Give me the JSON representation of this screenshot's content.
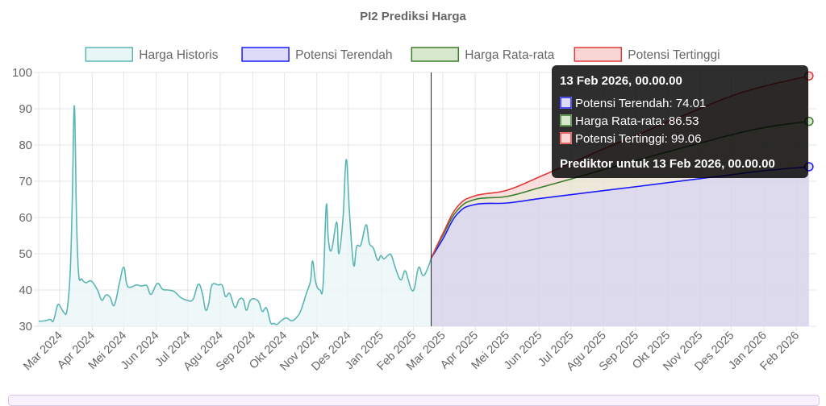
{
  "chart_data": {
    "type": "line",
    "title": "PI2 Prediksi Harga",
    "ylim": [
      30,
      100
    ],
    "y_ticks": [
      30,
      40,
      50,
      60,
      70,
      80,
      90,
      100
    ],
    "x_tick_labels": [
      "Mar 2024",
      "Apr 2024",
      "Mei 2024",
      "Jun 2024",
      "Jul 2024",
      "Agu 2024",
      "Sep 2024",
      "Okt 2024",
      "Nov 2024",
      "Des 2024",
      "Jan 2025",
      "Feb 2025",
      "Mar 2025",
      "Apr 2025",
      "Mei 2025",
      "Jun 2025",
      "Jul 2025",
      "Agu 2025",
      "Sep 2025",
      "Okt 2025",
      "Nov 2025",
      "Des 2025",
      "Jan 2026",
      "Feb 2026"
    ],
    "x_tick_dates": [
      "2024-03-01",
      "2024-04-01",
      "2024-05-01",
      "2024-06-01",
      "2024-07-01",
      "2024-08-01",
      "2024-09-01",
      "2024-10-01",
      "2024-11-01",
      "2024-12-01",
      "2025-01-01",
      "2025-02-01",
      "2025-03-01",
      "2025-04-01",
      "2025-05-01",
      "2025-06-01",
      "2025-07-01",
      "2025-08-01",
      "2025-09-01",
      "2025-10-01",
      "2025-11-01",
      "2025-12-01",
      "2026-01-01",
      "2026-02-01"
    ],
    "x_range": [
      "2024-02-10",
      "2026-02-20"
    ],
    "grid": true,
    "legend_position": "top",
    "vertical_marker_date": "2025-02-18",
    "series": [
      {
        "name": "Harga Historis",
        "color": "#5bb5b5",
        "fill": "#e9f6f6",
        "points": [
          [
            "2024-02-10",
            31.4
          ],
          [
            "2024-02-16",
            31.5
          ],
          [
            "2024-02-21",
            31.9
          ],
          [
            "2024-02-24",
            31.5
          ],
          [
            "2024-02-28",
            35.8
          ],
          [
            "2024-03-02",
            35.2
          ],
          [
            "2024-03-05",
            33.8
          ],
          [
            "2024-03-08",
            34.5
          ],
          [
            "2024-03-11",
            45
          ],
          [
            "2024-03-13",
            65
          ],
          [
            "2024-03-15",
            90.8
          ],
          [
            "2024-03-17",
            60
          ],
          [
            "2024-03-19",
            44.5
          ],
          [
            "2024-03-22",
            43
          ],
          [
            "2024-03-26",
            42
          ],
          [
            "2024-03-31",
            42.5
          ],
          [
            "2024-04-06",
            40
          ],
          [
            "2024-04-10",
            37.2
          ],
          [
            "2024-04-14",
            38.6
          ],
          [
            "2024-04-18",
            38
          ],
          [
            "2024-04-22",
            35.8
          ],
          [
            "2024-04-27",
            42
          ],
          [
            "2024-05-01",
            46.3
          ],
          [
            "2024-05-04",
            41.5
          ],
          [
            "2024-05-08",
            40.8
          ],
          [
            "2024-05-13",
            41.4
          ],
          [
            "2024-05-18",
            41.1
          ],
          [
            "2024-05-23",
            41.2
          ],
          [
            "2024-05-27",
            38.8
          ],
          [
            "2024-06-02",
            41.8
          ],
          [
            "2024-06-07",
            40.2
          ],
          [
            "2024-06-12",
            40
          ],
          [
            "2024-06-18",
            39.6
          ],
          [
            "2024-06-24",
            38
          ],
          [
            "2024-06-30",
            37.2
          ],
          [
            "2024-07-06",
            37.4
          ],
          [
            "2024-07-11",
            41.6
          ],
          [
            "2024-07-15",
            39
          ],
          [
            "2024-07-18",
            34.5
          ],
          [
            "2024-07-21",
            36.3
          ],
          [
            "2024-07-24",
            41.3
          ],
          [
            "2024-07-30",
            41.4
          ],
          [
            "2024-08-03",
            41.2
          ],
          [
            "2024-08-06",
            38.2
          ],
          [
            "2024-08-10",
            39
          ],
          [
            "2024-08-15",
            35.2
          ],
          [
            "2024-08-19",
            37.4
          ],
          [
            "2024-08-23",
            37.3
          ],
          [
            "2024-08-26",
            34.4
          ],
          [
            "2024-08-30",
            37.3
          ],
          [
            "2024-09-06",
            37
          ],
          [
            "2024-09-10",
            34.1
          ],
          [
            "2024-09-14",
            35
          ],
          [
            "2024-09-18",
            31
          ],
          [
            "2024-09-21",
            30.8
          ],
          [
            "2024-09-24",
            30.5
          ],
          [
            "2024-09-28",
            31.5
          ],
          [
            "2024-10-03",
            32.3
          ],
          [
            "2024-10-08",
            31.5
          ],
          [
            "2024-10-13",
            32.5
          ],
          [
            "2024-10-17",
            34.5
          ],
          [
            "2024-10-22",
            39
          ],
          [
            "2024-10-26",
            42.5
          ],
          [
            "2024-10-28",
            48
          ],
          [
            "2024-10-31",
            42
          ],
          [
            "2024-11-04",
            40
          ],
          [
            "2024-11-07",
            41.5
          ],
          [
            "2024-11-10",
            63.3
          ],
          [
            "2024-11-12",
            54
          ],
          [
            "2024-11-15",
            51
          ],
          [
            "2024-11-20",
            58.7
          ],
          [
            "2024-11-22",
            50
          ],
          [
            "2024-11-26",
            60
          ],
          [
            "2024-11-29",
            76
          ],
          [
            "2024-12-02",
            62
          ],
          [
            "2024-12-06",
            47
          ],
          [
            "2024-12-09",
            52
          ],
          [
            "2024-12-13",
            52.5
          ],
          [
            "2024-12-18",
            58
          ],
          [
            "2024-12-21",
            53
          ],
          [
            "2024-12-25",
            51.5
          ],
          [
            "2024-12-29",
            48.2
          ],
          [
            "2025-01-01",
            49.5
          ],
          [
            "2025-01-04",
            48.6
          ],
          [
            "2025-01-08",
            49.6
          ],
          [
            "2025-01-11",
            49.6
          ],
          [
            "2025-01-15",
            46
          ],
          [
            "2025-01-20",
            42.8
          ],
          [
            "2025-01-24",
            45.3
          ],
          [
            "2025-01-27",
            43
          ],
          [
            "2025-01-30",
            40.2
          ],
          [
            "2025-02-02",
            40.5
          ],
          [
            "2025-02-06",
            46.2
          ],
          [
            "2025-02-10",
            44
          ],
          [
            "2025-02-14",
            45.5
          ],
          [
            "2025-02-18",
            48.8
          ]
        ]
      },
      {
        "name": "Potensi Terendah",
        "color": "#1a1aff",
        "fill": "#dddbf7",
        "points": [
          [
            "2025-02-18",
            48.8
          ],
          [
            "2025-03-01",
            54
          ],
          [
            "2025-03-15",
            61
          ],
          [
            "2025-04-01",
            63.6
          ],
          [
            "2025-05-01",
            64
          ],
          [
            "2025-06-01",
            65.2
          ],
          [
            "2025-07-01",
            66.3
          ],
          [
            "2025-08-01",
            67.4
          ],
          [
            "2025-09-01",
            68.5
          ],
          [
            "2025-10-01",
            69.6
          ],
          [
            "2025-11-01",
            70.7
          ],
          [
            "2025-12-01",
            71.8
          ],
          [
            "2026-01-01",
            72.9
          ],
          [
            "2026-02-13",
            74.01
          ]
        ]
      },
      {
        "name": "Harga Rata-rata",
        "color": "#3b7d2c",
        "fill": "#d8e8cc",
        "points": [
          [
            "2025-02-18",
            48.8
          ],
          [
            "2025-03-01",
            55
          ],
          [
            "2025-03-15",
            62
          ],
          [
            "2025-04-01",
            65
          ],
          [
            "2025-05-01",
            65.8
          ],
          [
            "2025-06-01",
            68.2
          ],
          [
            "2025-07-01",
            70.6
          ],
          [
            "2025-08-01",
            73.2
          ],
          [
            "2025-09-01",
            75.7
          ],
          [
            "2025-10-01",
            78.1
          ],
          [
            "2025-11-01",
            80.5
          ],
          [
            "2025-12-01",
            82.8
          ],
          [
            "2026-01-01",
            84.8
          ],
          [
            "2026-02-13",
            86.53
          ]
        ]
      },
      {
        "name": "Potensi Tertinggi",
        "color": "#e03a3a",
        "fill": "#f9d6d6",
        "points": [
          [
            "2025-02-18",
            48.8
          ],
          [
            "2025-03-01",
            55.5
          ],
          [
            "2025-03-15",
            63
          ],
          [
            "2025-04-01",
            66
          ],
          [
            "2025-05-01",
            67.5
          ],
          [
            "2025-06-01",
            71.2
          ],
          [
            "2025-07-01",
            75
          ],
          [
            "2025-08-01",
            78.9
          ],
          [
            "2025-09-01",
            82.6
          ],
          [
            "2025-10-01",
            86.3
          ],
          [
            "2025-11-01",
            90
          ],
          [
            "2025-12-01",
            93.5
          ],
          [
            "2026-01-01",
            96.2
          ],
          [
            "2026-02-13",
            99.06
          ]
        ]
      }
    ],
    "tooltip": {
      "title": "13 Feb 2026, 00.00.00",
      "lines": [
        "Potensi Terendah: 74.01",
        "Harga Rata-rata: 86.53",
        "Potensi Tertinggi: 99.06"
      ],
      "footer": "Prediktor untuk 13 Feb 2026, 00.00.00",
      "point_date": "2026-02-13"
    }
  }
}
